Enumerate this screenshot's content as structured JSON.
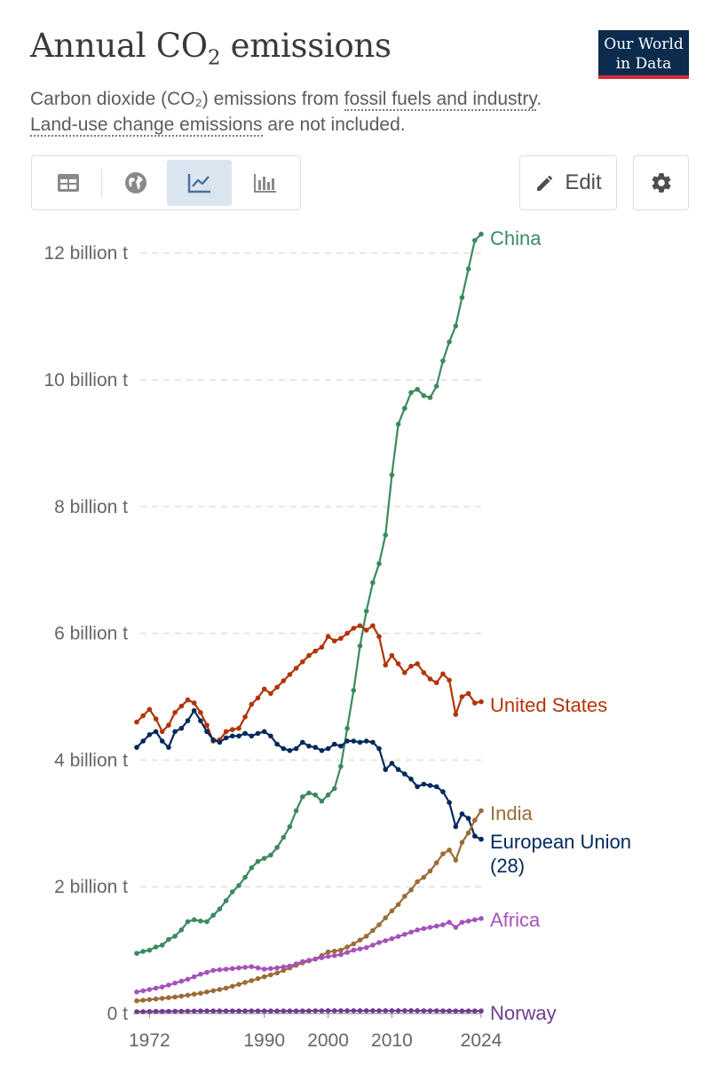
{
  "header": {
    "title_main": "Annual CO",
    "title_sub": "2",
    "title_tail": " emissions",
    "logo_line1": "Our World",
    "logo_line2": "in Data",
    "subtitle_a": "Carbon dioxide (CO₂) emissions from ",
    "subtitle_link1": "fossil fuels and industry",
    "subtitle_b": ".",
    "subtitle_link2": "Land-use change emissions",
    "subtitle_c": " are not included."
  },
  "toolbar": {
    "views": [
      "table-icon",
      "map-icon",
      "line-chart-icon",
      "bar-chart-icon"
    ],
    "active_view": "line-chart-icon",
    "edit_label": "Edit",
    "settings_icon": "gear-icon"
  },
  "colors": {
    "China": "#3b8a5f",
    "United States": "#b13507",
    "European Union (28)": "#00295b",
    "India": "#9a6d38",
    "Africa": "#a652ba",
    "Norway": "#6d3e91",
    "grid": "#dddddd",
    "axis": "#666666"
  },
  "chart_data": {
    "type": "line",
    "title": "Annual CO₂ emissions",
    "xlabel": "",
    "ylabel": "",
    "x_ticks": [
      "1972",
      "1990",
      "2000",
      "2010",
      "2024"
    ],
    "y_ticks": [
      {
        "value": 0,
        "label": "0 t"
      },
      {
        "value": 2,
        "label": "2 billion t"
      },
      {
        "value": 4,
        "label": "4 billion t"
      },
      {
        "value": 6,
        "label": "6 billion t"
      },
      {
        "value": 8,
        "label": "8 billion t"
      },
      {
        "value": 10,
        "label": "10 billion t"
      },
      {
        "value": 12,
        "label": "12 billion t"
      }
    ],
    "ylim": [
      0,
      12.3
    ],
    "units": "billion t",
    "grid": "horizontal dashed",
    "legend": "right, inline labels",
    "series": [
      {
        "name": "China",
        "label_lines": [
          "China"
        ],
        "points": [
          [
            1970,
            0.95
          ],
          [
            1971,
            0.98
          ],
          [
            1972,
            1.0
          ],
          [
            1973,
            1.05
          ],
          [
            1974,
            1.08
          ],
          [
            1975,
            1.17
          ],
          [
            1976,
            1.22
          ],
          [
            1977,
            1.32
          ],
          [
            1978,
            1.45
          ],
          [
            1979,
            1.48
          ],
          [
            1980,
            1.46
          ],
          [
            1981,
            1.45
          ],
          [
            1982,
            1.55
          ],
          [
            1983,
            1.65
          ],
          [
            1984,
            1.78
          ],
          [
            1985,
            1.92
          ],
          [
            1986,
            2.02
          ],
          [
            1987,
            2.15
          ],
          [
            1988,
            2.3
          ],
          [
            1989,
            2.4
          ],
          [
            1990,
            2.45
          ],
          [
            1991,
            2.5
          ],
          [
            1992,
            2.62
          ],
          [
            1993,
            2.78
          ],
          [
            1994,
            2.95
          ],
          [
            1995,
            3.2
          ],
          [
            1996,
            3.42
          ],
          [
            1997,
            3.48
          ],
          [
            1998,
            3.45
          ],
          [
            1999,
            3.35
          ],
          [
            2000,
            3.45
          ],
          [
            2001,
            3.55
          ],
          [
            2002,
            3.9
          ],
          [
            2003,
            4.5
          ],
          [
            2004,
            5.1
          ],
          [
            2005,
            5.8
          ],
          [
            2006,
            6.35
          ],
          [
            2007,
            6.8
          ],
          [
            2008,
            7.1
          ],
          [
            2009,
            7.55
          ],
          [
            2010,
            8.5
          ],
          [
            2011,
            9.3
          ],
          [
            2012,
            9.55
          ],
          [
            2013,
            9.8
          ],
          [
            2014,
            9.85
          ],
          [
            2015,
            9.75
          ],
          [
            2016,
            9.72
          ],
          [
            2017,
            9.9
          ],
          [
            2018,
            10.3
          ],
          [
            2019,
            10.6
          ],
          [
            2020,
            10.85
          ],
          [
            2021,
            11.3
          ],
          [
            2022,
            11.75
          ],
          [
            2023,
            12.2
          ],
          [
            2024,
            12.3
          ]
        ]
      },
      {
        "name": "United States",
        "label_lines": [
          "United States"
        ],
        "points": [
          [
            1970,
            4.6
          ],
          [
            1971,
            4.7
          ],
          [
            1972,
            4.8
          ],
          [
            1973,
            4.65
          ],
          [
            1974,
            4.45
          ],
          [
            1975,
            4.55
          ],
          [
            1976,
            4.75
          ],
          [
            1977,
            4.85
          ],
          [
            1978,
            4.95
          ],
          [
            1979,
            4.9
          ],
          [
            1980,
            4.75
          ],
          [
            1981,
            4.55
          ],
          [
            1982,
            4.3
          ],
          [
            1983,
            4.32
          ],
          [
            1984,
            4.45
          ],
          [
            1985,
            4.48
          ],
          [
            1986,
            4.5
          ],
          [
            1987,
            4.68
          ],
          [
            1988,
            4.88
          ],
          [
            1989,
            4.98
          ],
          [
            1990,
            5.12
          ],
          [
            1991,
            5.05
          ],
          [
            1992,
            5.15
          ],
          [
            1993,
            5.25
          ],
          [
            1994,
            5.35
          ],
          [
            1995,
            5.45
          ],
          [
            1996,
            5.55
          ],
          [
            1997,
            5.65
          ],
          [
            1998,
            5.72
          ],
          [
            1999,
            5.78
          ],
          [
            2000,
            5.95
          ],
          [
            2001,
            5.88
          ],
          [
            2002,
            5.92
          ],
          [
            2003,
            6.0
          ],
          [
            2004,
            6.08
          ],
          [
            2005,
            6.12
          ],
          [
            2006,
            6.05
          ],
          [
            2007,
            6.12
          ],
          [
            2008,
            5.95
          ],
          [
            2009,
            5.5
          ],
          [
            2010,
            5.65
          ],
          [
            2011,
            5.52
          ],
          [
            2012,
            5.38
          ],
          [
            2013,
            5.48
          ],
          [
            2014,
            5.52
          ],
          [
            2015,
            5.38
          ],
          [
            2016,
            5.28
          ],
          [
            2017,
            5.22
          ],
          [
            2018,
            5.36
          ],
          [
            2019,
            5.26
          ],
          [
            2020,
            4.72
          ],
          [
            2021,
            5.0
          ],
          [
            2022,
            5.05
          ],
          [
            2023,
            4.9
          ],
          [
            2024,
            4.92
          ]
        ]
      },
      {
        "name": "European Union (28)",
        "label_lines": [
          "European Union",
          "(28)"
        ],
        "points": [
          [
            1970,
            4.2
          ],
          [
            1971,
            4.3
          ],
          [
            1972,
            4.4
          ],
          [
            1973,
            4.45
          ],
          [
            1974,
            4.3
          ],
          [
            1975,
            4.2
          ],
          [
            1976,
            4.45
          ],
          [
            1977,
            4.5
          ],
          [
            1978,
            4.62
          ],
          [
            1979,
            4.78
          ],
          [
            1980,
            4.62
          ],
          [
            1981,
            4.45
          ],
          [
            1982,
            4.32
          ],
          [
            1983,
            4.28
          ],
          [
            1984,
            4.35
          ],
          [
            1985,
            4.38
          ],
          [
            1986,
            4.38
          ],
          [
            1987,
            4.42
          ],
          [
            1988,
            4.38
          ],
          [
            1989,
            4.42
          ],
          [
            1990,
            4.45
          ],
          [
            1991,
            4.38
          ],
          [
            1992,
            4.25
          ],
          [
            1993,
            4.18
          ],
          [
            1994,
            4.15
          ],
          [
            1995,
            4.18
          ],
          [
            1996,
            4.28
          ],
          [
            1997,
            4.22
          ],
          [
            1998,
            4.2
          ],
          [
            1999,
            4.15
          ],
          [
            2000,
            4.18
          ],
          [
            2001,
            4.25
          ],
          [
            2002,
            4.22
          ],
          [
            2003,
            4.3
          ],
          [
            2004,
            4.3
          ],
          [
            2005,
            4.28
          ],
          [
            2006,
            4.3
          ],
          [
            2007,
            4.28
          ],
          [
            2008,
            4.18
          ],
          [
            2009,
            3.85
          ],
          [
            2010,
            3.95
          ],
          [
            2011,
            3.85
          ],
          [
            2012,
            3.78
          ],
          [
            2013,
            3.7
          ],
          [
            2014,
            3.58
          ],
          [
            2015,
            3.62
          ],
          [
            2016,
            3.6
          ],
          [
            2017,
            3.58
          ],
          [
            2018,
            3.5
          ],
          [
            2019,
            3.33
          ],
          [
            2020,
            2.95
          ],
          [
            2021,
            3.15
          ],
          [
            2022,
            3.08
          ],
          [
            2023,
            2.8
          ],
          [
            2024,
            2.75
          ]
        ]
      },
      {
        "name": "India",
        "label_lines": [
          "India"
        ],
        "points": [
          [
            1970,
            0.2
          ],
          [
            1972,
            0.22
          ],
          [
            1974,
            0.24
          ],
          [
            1976,
            0.26
          ],
          [
            1978,
            0.29
          ],
          [
            1980,
            0.32
          ],
          [
            1982,
            0.36
          ],
          [
            1984,
            0.4
          ],
          [
            1986,
            0.46
          ],
          [
            1988,
            0.52
          ],
          [
            1990,
            0.58
          ],
          [
            1992,
            0.64
          ],
          [
            1994,
            0.72
          ],
          [
            1996,
            0.8
          ],
          [
            1998,
            0.86
          ],
          [
            2000,
            0.97
          ],
          [
            2002,
            1.0
          ],
          [
            2004,
            1.1
          ],
          [
            2006,
            1.22
          ],
          [
            2008,
            1.4
          ],
          [
            2010,
            1.62
          ],
          [
            2011,
            1.72
          ],
          [
            2012,
            1.85
          ],
          [
            2013,
            1.95
          ],
          [
            2014,
            2.08
          ],
          [
            2015,
            2.15
          ],
          [
            2016,
            2.25
          ],
          [
            2017,
            2.38
          ],
          [
            2018,
            2.52
          ],
          [
            2019,
            2.58
          ],
          [
            2020,
            2.42
          ],
          [
            2021,
            2.7
          ],
          [
            2022,
            2.85
          ],
          [
            2023,
            3.05
          ],
          [
            2024,
            3.2
          ]
        ]
      },
      {
        "name": "Africa",
        "label_lines": [
          "Africa"
        ],
        "points": [
          [
            1970,
            0.34
          ],
          [
            1972,
            0.38
          ],
          [
            1974,
            0.42
          ],
          [
            1976,
            0.48
          ],
          [
            1978,
            0.54
          ],
          [
            1980,
            0.62
          ],
          [
            1982,
            0.68
          ],
          [
            1984,
            0.7
          ],
          [
            1986,
            0.72
          ],
          [
            1988,
            0.74
          ],
          [
            1990,
            0.7
          ],
          [
            1992,
            0.72
          ],
          [
            1994,
            0.75
          ],
          [
            1996,
            0.82
          ],
          [
            1998,
            0.86
          ],
          [
            2000,
            0.9
          ],
          [
            2002,
            0.93
          ],
          [
            2004,
            1.0
          ],
          [
            2006,
            1.04
          ],
          [
            2008,
            1.12
          ],
          [
            2010,
            1.18
          ],
          [
            2012,
            1.25
          ],
          [
            2014,
            1.32
          ],
          [
            2016,
            1.36
          ],
          [
            2018,
            1.4
          ],
          [
            2019,
            1.44
          ],
          [
            2020,
            1.36
          ],
          [
            2021,
            1.44
          ],
          [
            2022,
            1.46
          ],
          [
            2023,
            1.48
          ],
          [
            2024,
            1.5
          ]
        ]
      },
      {
        "name": "Norway",
        "label_lines": [
          "Norway"
        ],
        "points": [
          [
            1970,
            0.03
          ],
          [
            1975,
            0.035
          ],
          [
            1980,
            0.04
          ],
          [
            1985,
            0.04
          ],
          [
            1990,
            0.04
          ],
          [
            1995,
            0.04
          ],
          [
            2000,
            0.045
          ],
          [
            2005,
            0.045
          ],
          [
            2010,
            0.045
          ],
          [
            2015,
            0.044
          ],
          [
            2020,
            0.041
          ],
          [
            2024,
            0.04
          ]
        ]
      }
    ]
  }
}
